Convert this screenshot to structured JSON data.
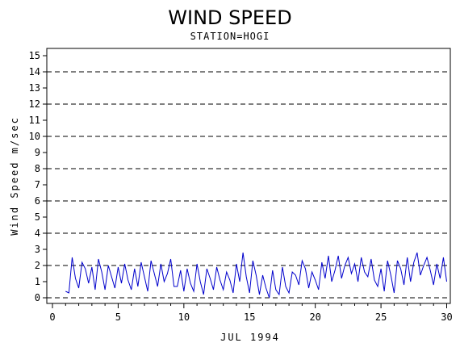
{
  "chart_data": {
    "type": "line",
    "title": "WIND SPEED",
    "subtitle": "STATION=HOGI",
    "xlabel": "JUL 1994",
    "ylabel": "Wind Speed m/sec",
    "xlim": [
      0,
      30
    ],
    "ylim": [
      0,
      15
    ],
    "x_ticks": [
      0,
      5,
      10,
      15,
      20,
      25,
      30
    ],
    "y_ticks": [
      0,
      1,
      2,
      3,
      4,
      5,
      6,
      7,
      8,
      9,
      10,
      11,
      12,
      13,
      14,
      15
    ],
    "grid_y_dashed": [
      0,
      2,
      4,
      6,
      8,
      10,
      12,
      14
    ],
    "line_color": "#0000cc",
    "series": [
      {
        "x": [
          1.0,
          1.25,
          1.5,
          1.75,
          2.0,
          2.25,
          2.5,
          2.75,
          3.0,
          3.25,
          3.5,
          3.75,
          4.0,
          4.25,
          4.5,
          4.75,
          5.0,
          5.25,
          5.5,
          5.75,
          6.0,
          6.25,
          6.5,
          6.75,
          7.0,
          7.25,
          7.5,
          7.75,
          8.0,
          8.25,
          8.5,
          8.75,
          9.0,
          9.25,
          9.5,
          9.75,
          10.0,
          10.25,
          10.5,
          10.75,
          11.0,
          11.25,
          11.5,
          11.75,
          12.0,
          12.25,
          12.5,
          12.75,
          13.0,
          13.25,
          13.5,
          13.75,
          14.0,
          14.25,
          14.5,
          14.75,
          15.0,
          15.25,
          15.5,
          15.75,
          16.0,
          16.25,
          16.5,
          16.75,
          17.0,
          17.25,
          17.5,
          17.75,
          18.0,
          18.25,
          18.5,
          18.75,
          19.0,
          19.25,
          19.5,
          19.75,
          20.0,
          20.25,
          20.5,
          20.75,
          21.0,
          21.25,
          21.5,
          21.75,
          22.0,
          22.25,
          22.5,
          22.75,
          23.0,
          23.25,
          23.5,
          23.75,
          24.0,
          24.25,
          24.5,
          24.75,
          25.0,
          25.25,
          25.5,
          25.75,
          26.0,
          26.25,
          26.5,
          26.75,
          27.0,
          27.25,
          27.5,
          27.75,
          28.0,
          28.25,
          28.5,
          28.75,
          29.0,
          29.25,
          29.5,
          29.75,
          30.0
        ],
        "values": [
          0.4,
          0.3,
          2.5,
          1.2,
          0.6,
          2.2,
          1.8,
          0.9,
          1.9,
          0.5,
          2.4,
          1.6,
          0.5,
          2.0,
          1.3,
          0.6,
          1.9,
          0.9,
          2.1,
          1.1,
          0.5,
          1.8,
          0.7,
          2.2,
          1.3,
          0.4,
          2.3,
          1.5,
          0.7,
          2.1,
          1.0,
          1.5,
          2.4,
          0.7,
          0.7,
          1.7,
          0.4,
          1.8,
          0.9,
          0.4,
          2.1,
          1.0,
          0.2,
          1.8,
          1.2,
          0.5,
          1.9,
          1.1,
          0.5,
          1.6,
          1.1,
          0.3,
          2.1,
          1.0,
          2.8,
          1.3,
          0.3,
          2.3,
          1.4,
          0.2,
          1.4,
          0.6,
          0.0,
          1.7,
          0.5,
          0.2,
          1.9,
          0.7,
          0.3,
          1.6,
          1.4,
          0.8,
          2.3,
          1.8,
          0.6,
          1.6,
          1.1,
          0.5,
          2.2,
          1.2,
          2.6,
          1.0,
          1.7,
          2.6,
          1.2,
          2.0,
          2.5,
          1.5,
          2.1,
          1.0,
          2.5,
          1.6,
          1.3,
          2.4,
          1.1,
          0.7,
          1.8,
          0.4,
          2.3,
          1.4,
          0.3,
          2.3,
          1.8,
          0.8,
          2.5,
          1.0,
          2.2,
          2.8,
          1.4,
          2.0,
          2.5,
          1.7,
          0.8,
          2.1,
          1.2,
          2.5,
          1.0
        ]
      }
    ]
  }
}
